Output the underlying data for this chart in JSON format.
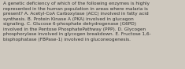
{
  "text": "A genetic deficiency of which of the following enzymes is highly\nrepresented in the human population in areas where malaria is\npresent? A. Acetyl-CoA Carboxylase (ACC) involved in fatty acid\nsynthesis. B. Protein Kinase A (PKA) involved in glucagon\nsignaling. C. Glucose 6-phosphate dehydrogenase (G6PD)\ninvolved in the Pentose PhosphatePathway (PPP). D. Glycogen\nphosphorylase involved in glycogen breakdown. E. Fructose 1,6-\nbisphophatase (FBPase-1) involved in gluconeogenesis.",
  "background_color": "#cec8be",
  "text_color": "#2e2e2e",
  "font_size": 4.15,
  "fig_width": 2.35,
  "fig_height": 0.88,
  "linespacing": 1.38
}
